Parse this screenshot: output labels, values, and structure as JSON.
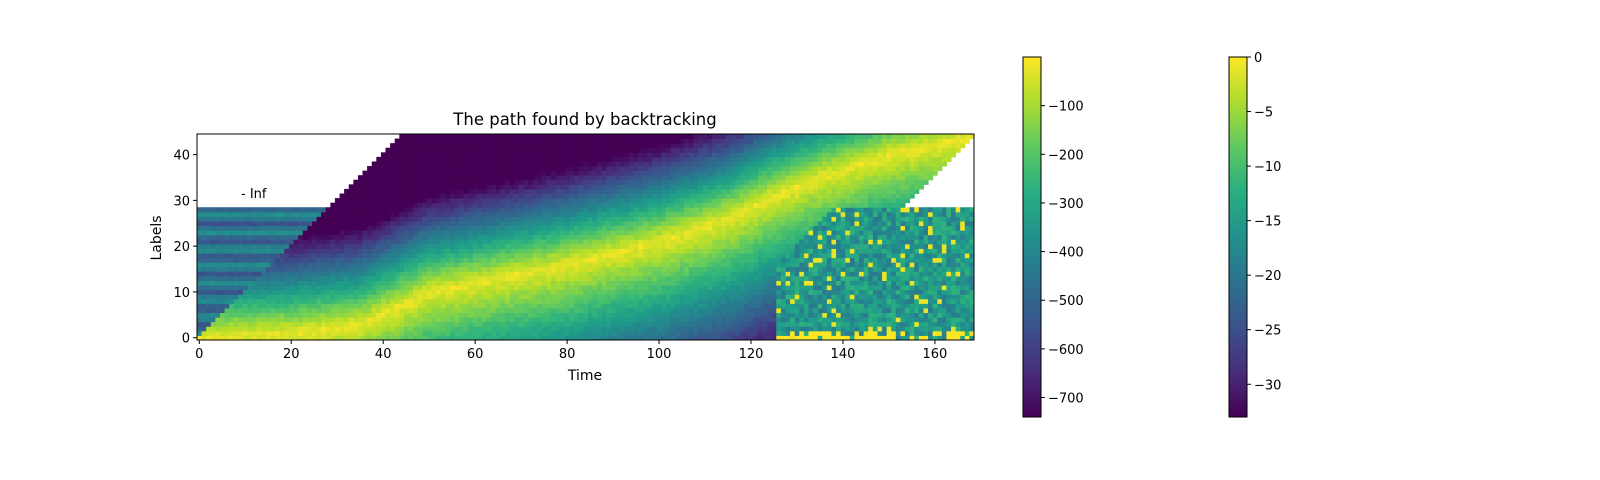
{
  "chart_data": {
    "type": "heatmap",
    "title": "The path found by backtracking",
    "xlabel": "Time",
    "ylabel": "Labels",
    "xlim": [
      -0.5,
      168.5
    ],
    "ylim": [
      -0.5,
      44.5
    ],
    "x_ticks": [
      0,
      20,
      40,
      60,
      80,
      100,
      120,
      140,
      160
    ],
    "y_ticks": [
      0,
      10,
      20,
      30,
      40
    ],
    "n_time": 169,
    "n_labels": 45,
    "colormap": "viridis",
    "annotation": {
      "text": "- Inf",
      "x": 9,
      "y": 31
    },
    "colorbars": [
      {
        "range": [
          -740,
          0
        ],
        "ticks": [
          -700,
          -600,
          -500,
          -400,
          -300,
          -200,
          -100
        ]
      },
      {
        "range": [
          -33,
          0
        ],
        "ticks": [
          -30,
          -25,
          -20,
          -15,
          -10,
          -5,
          0
        ]
      }
    ],
    "masked_regions": [
      "upper-left triangle above the diagonal from (0,0) to (44,44) where labels > time (value -Inf, shown white)",
      "upper-right triangle below the diagonal where remaining labels exceed remaining time (shown white)"
    ],
    "path_description": "High-probability band (near 0) runs from (0,0) rising to (168,44), passing near (50,11), (80,17), (100,22), (120,30)"
  }
}
